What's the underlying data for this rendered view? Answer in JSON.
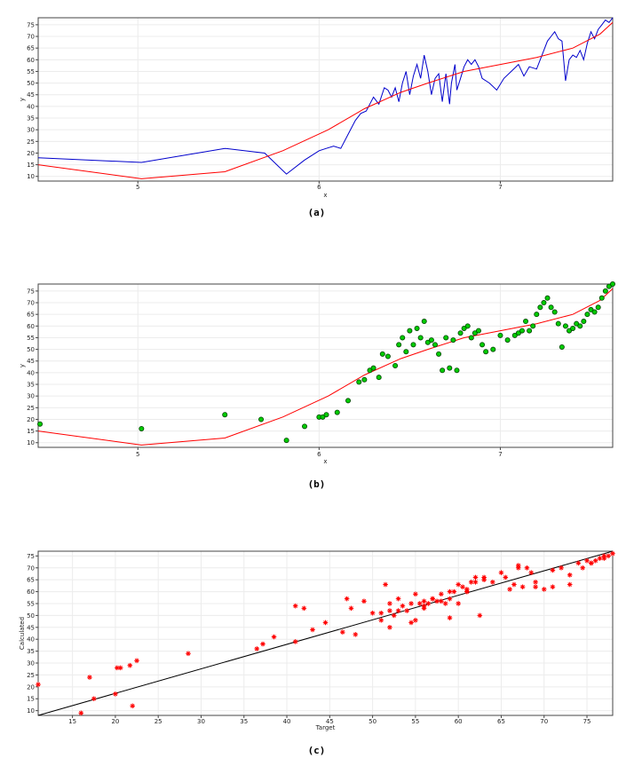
{
  "charts": [
    {
      "caption": "(a)",
      "chart_data": {
        "type": "line",
        "xlabel": "x",
        "ylabel": "y",
        "xlim": [
          4.45,
          7.62
        ],
        "ylim": [
          8,
          78
        ],
        "xticks": [
          5,
          6,
          7
        ],
        "yticks": [
          10,
          15,
          20,
          25,
          30,
          35,
          40,
          45,
          50,
          55,
          60,
          65,
          70,
          75
        ],
        "grid": true,
        "colors": {
          "observed": "#0000cc",
          "fit": "#ff0000"
        },
        "series": [
          {
            "x": [
              4.45,
              5.02,
              5.48,
              5.7,
              5.82,
              5.92,
              6.0,
              6.04,
              6.08,
              6.12,
              6.16,
              6.2,
              6.23,
              6.26,
              6.28,
              6.3,
              6.33,
              6.36,
              6.38,
              6.4,
              6.42,
              6.44,
              6.46,
              6.48,
              6.5,
              6.52,
              6.54,
              6.56,
              6.58,
              6.6,
              6.62,
              6.64,
              6.66,
              6.68,
              6.7,
              6.72,
              6.73,
              6.74,
              6.75,
              6.76,
              6.78,
              6.8,
              6.82,
              6.84,
              6.86,
              6.88,
              6.9,
              6.94,
              6.98,
              7.02,
              7.06,
              7.1,
              7.13,
              7.16,
              7.2,
              7.23,
              7.26,
              7.28,
              7.3,
              7.32,
              7.34,
              7.36,
              7.38,
              7.4,
              7.42,
              7.44,
              7.46,
              7.48,
              7.5,
              7.52,
              7.54,
              7.56,
              7.58,
              7.6,
              7.62
            ],
            "y": [
              18,
              16,
              22,
              20,
              11,
              17,
              21,
              22,
              23,
              22,
              28,
              34,
              37,
              38,
              41,
              44,
              41,
              48,
              47,
              44,
              48,
              42,
              50,
              55,
              45,
              53,
              58,
              52,
              62,
              55,
              45,
              52,
              54,
              42,
              54,
              41,
              50,
              54,
              58,
              47,
              52,
              57,
              60,
              58,
              60,
              57,
              52,
              50,
              47,
              52,
              55,
              58,
              53,
              57,
              56,
              62,
              68,
              70,
              72,
              69,
              68,
              51,
              60,
              62,
              61,
              64,
              60,
              67,
              72,
              69,
              73,
              75,
              77,
              76,
              78
            ]
          },
          {
            "x": [
              4.45,
              5.02,
              5.48,
              5.8,
              6.05,
              6.25,
              6.45,
              6.6,
              6.8,
              7.0,
              7.2,
              7.4,
              7.55,
              7.62
            ],
            "y": [
              15,
              9,
              12,
              21,
              30,
              39,
              46,
              50,
              55,
              58,
              61,
              65,
              71,
              76
            ]
          }
        ]
      }
    },
    {
      "caption": "(b)",
      "chart_data": {
        "type": "scatter",
        "xlabel": "x",
        "ylabel": "y",
        "xlim": [
          4.45,
          7.62
        ],
        "ylim": [
          8,
          78
        ],
        "xticks": [
          5,
          6,
          7
        ],
        "yticks": [
          10,
          15,
          20,
          25,
          30,
          35,
          40,
          45,
          50,
          55,
          60,
          65,
          70,
          75
        ],
        "grid": true,
        "colors": {
          "points": "#00cc00",
          "outline": "#004400",
          "fit": "#ff0000"
        },
        "series": [
          {
            "x": [
              4.46,
              5.02,
              5.48,
              5.68,
              5.82,
              5.92,
              6.0,
              6.02,
              6.04,
              6.1,
              6.16,
              6.22,
              6.25,
              6.28,
              6.3,
              6.33,
              6.35,
              6.38,
              6.42,
              6.44,
              6.46,
              6.48,
              6.5,
              6.52,
              6.54,
              6.56,
              6.58,
              6.6,
              6.62,
              6.64,
              6.66,
              6.68,
              6.7,
              6.72,
              6.74,
              6.76,
              6.78,
              6.8,
              6.82,
              6.84,
              6.86,
              6.88,
              6.9,
              6.92,
              6.96,
              7.0,
              7.04,
              7.08,
              7.1,
              7.12,
              7.14,
              7.16,
              7.18,
              7.2,
              7.22,
              7.24,
              7.26,
              7.28,
              7.3,
              7.32,
              7.34,
              7.36,
              7.38,
              7.4,
              7.42,
              7.44,
              7.46,
              7.48,
              7.5,
              7.52,
              7.54,
              7.56,
              7.58,
              7.6,
              7.62
            ],
            "y": [
              18,
              16,
              22,
              20,
              11,
              17,
              21,
              21,
              22,
              23,
              28,
              36,
              37,
              41,
              42,
              38,
              48,
              47,
              43,
              52,
              55,
              49,
              58,
              52,
              59,
              55,
              62,
              53,
              54,
              52,
              48,
              41,
              55,
              42,
              54,
              41,
              57,
              59,
              60,
              55,
              57,
              58,
              52,
              49,
              50,
              56,
              54,
              56,
              57,
              58,
              62,
              58,
              60,
              65,
              68,
              70,
              72,
              68,
              66,
              61,
              51,
              60,
              58,
              59,
              61,
              60,
              62,
              65,
              67,
              66,
              68,
              72,
              75,
              77,
              78
            ]
          },
          {
            "x": [
              4.45,
              5.02,
              5.48,
              5.8,
              6.05,
              6.25,
              6.45,
              6.6,
              6.8,
              7.0,
              7.2,
              7.4,
              7.55,
              7.62
            ],
            "y": [
              15,
              9,
              12,
              21,
              30,
              39,
              46,
              50,
              55,
              58,
              61,
              65,
              71,
              76
            ]
          }
        ]
      }
    },
    {
      "caption": "(c)",
      "chart_data": {
        "type": "scatter",
        "xlabel": "Target",
        "ylabel": "Calculated",
        "xlim": [
          11,
          78
        ],
        "ylim": [
          8,
          77
        ],
        "xticks": [
          15,
          20,
          25,
          30,
          35,
          40,
          45,
          50,
          55,
          60,
          65,
          70,
          75
        ],
        "yticks": [
          10,
          15,
          20,
          25,
          30,
          35,
          40,
          45,
          50,
          55,
          60,
          65,
          70,
          75
        ],
        "grid": true,
        "colors": {
          "points": "#ff0000",
          "line": "#000000"
        },
        "series": [
          {
            "x": [
              11,
              16,
              17,
              17.5,
              20,
              20.2,
              20.6,
              21.7,
              22,
              22.5,
              28.5,
              36.5,
              37.2,
              38.5,
              41,
              41,
              42,
              43,
              44.5,
              46.5,
              47,
              48,
              49,
              50,
              51,
              51.5,
              52,
              52.5,
              53,
              53.5,
              54,
              54.5,
              55,
              55.5,
              56,
              56.5,
              57,
              57.5,
              58,
              58.5,
              59,
              59.5,
              60,
              60.5,
              61,
              61.5,
              62,
              62.5,
              63,
              64,
              65,
              65.5,
              66,
              66.5,
              67,
              67.5,
              68,
              68.5,
              69,
              70,
              71,
              72,
              73,
              74,
              74.5,
              75,
              75.5,
              76,
              76.5,
              77,
              77.5,
              78,
              47.5,
              51,
              52,
              53,
              55,
              56,
              57,
              58,
              59,
              60,
              61,
              62,
              54.5,
              52,
              56,
              59,
              61,
              63,
              67,
              69,
              71,
              73,
              75.5,
              77
            ],
            "y": [
              21,
              9,
              24,
              15,
              17,
              28,
              28,
              29,
              12,
              31,
              34,
              36,
              38,
              41,
              39,
              54,
              53,
              44,
              47,
              43,
              57,
              42,
              56,
              51,
              48,
              63,
              45,
              50,
              57,
              54,
              52,
              47,
              48,
              55,
              53,
              55,
              57,
              56,
              59,
              55,
              60,
              60,
              55,
              62,
              60,
              64,
              64,
              50,
              66,
              64,
              68,
              66,
              61,
              63,
              70,
              62,
              70,
              68,
              62,
              61,
              62,
              70,
              63,
              72,
              70,
              73,
              72,
              73,
              74,
              75,
              75,
              76,
              53,
              51,
              52,
              52,
              59,
              54,
              57,
              56,
              57,
              63,
              60,
              66,
              55,
              55,
              56,
              49,
              61,
              65,
              71,
              64,
              69,
              67,
              72,
              74
            ]
          }
        ],
        "line": {
          "x": [
            11,
            78
          ],
          "y": [
            8,
            77
          ]
        }
      }
    }
  ]
}
